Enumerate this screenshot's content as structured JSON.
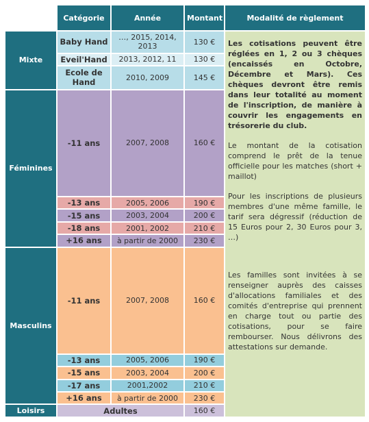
{
  "table": {
    "header": [
      "Catégorie",
      "Année",
      "Montant",
      "Modalité de règlement"
    ],
    "groups": [
      {
        "label": "Mixte",
        "rows": [
          {
            "category": "Baby Hand",
            "year": "…, 2015, 2014, 2013",
            "amount": "130 €"
          },
          {
            "category": "Eveil'Hand",
            "year": "2013, 2012, 11",
            "amount": "130 €"
          },
          {
            "category": "Ecole de Hand",
            "year": "2010, 2009",
            "amount": "145 €"
          }
        ]
      },
      {
        "label": "Féminines",
        "rows": [
          {
            "category": "-11 ans",
            "year": "2007, 2008",
            "amount": "160 €"
          },
          {
            "category": "-13 ans",
            "year": "2005, 2006",
            "amount": "190 €"
          },
          {
            "category": "-15 ans",
            "year": "2003, 2004",
            "amount": "200 €"
          },
          {
            "category": "-18 ans",
            "year": "2001, 2002",
            "amount": "210 €"
          },
          {
            "category": "+16 ans",
            "year": "à partir de 2000",
            "amount": "230 €"
          }
        ]
      },
      {
        "label": "Masculins",
        "rows": [
          {
            "category": "-11 ans",
            "year": "2007, 2008",
            "amount": "160 €"
          },
          {
            "category": "-13 ans",
            "year": "2005, 2006",
            "amount": "190 €"
          },
          {
            "category": "-15 ans",
            "year": "2003, 2004",
            "amount": "200 €"
          },
          {
            "category": "-17 ans",
            "year": "2001,2002",
            "amount": "210 €"
          },
          {
            "category": "+16 ans",
            "year": "à partir de 2000",
            "amount": "230 €"
          }
        ]
      },
      {
        "label": "Loisirs",
        "rows": [
          {
            "category": "Adultes",
            "amount": "160 €"
          }
        ]
      }
    ],
    "modality": [
      "Les cotisations peuvent être réglées en 1, 2 ou 3 chèques (encaissés en Octobre, Décembre et Mars). Ces chèques devront être remis dans leur totalité au moment de l'inscription, de manière à couvrir les engagements en trésorerie du club.",
      "Le montant de la cotisation comprend le prêt de la tenue officielle pour les matches (short + maillot)",
      "Pour les inscriptions de plusieurs membres d'une même famille, le tarif sera dégressif (réduction de 15 Euros pour 2, 30 Euros pour 3, …)",
      "Les familles sont invitées à se renseigner auprès des caisses d'allocations familiales et des comités d'entreprise qui prennent en charge tout ou partie des cotisations, pour se faire rembourser. Nous délivrons des attestations sur demande."
    ]
  }
}
